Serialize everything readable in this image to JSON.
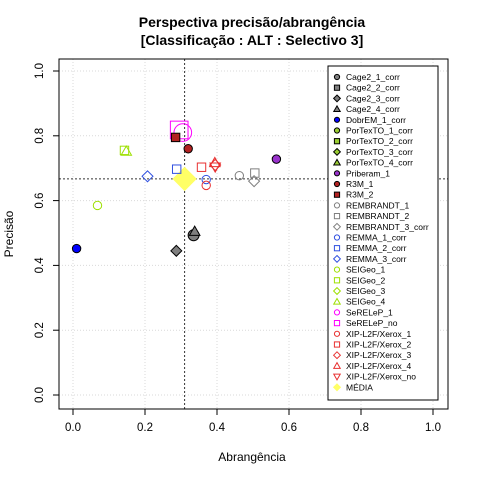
{
  "chart_data": {
    "type": "scatter",
    "title": "Perspectiva precisão/abrangência",
    "subtitle": "[Classificação : ALT : Selectivo 3]",
    "xlabel": "Abrangência",
    "ylabel": "Precisão",
    "xlim": [
      0,
      1
    ],
    "ylim": [
      0,
      1
    ],
    "xticks": [
      "0.0",
      "0.2",
      "0.4",
      "0.6",
      "0.8",
      "1.0"
    ],
    "yticks": [
      "0.0",
      "0.2",
      "0.4",
      "0.6",
      "0.8",
      "1.0"
    ],
    "grid": true,
    "legend_position": "right",
    "reference_lines": {
      "x": 0.31,
      "y": 0.667
    },
    "series": [
      {
        "name": "Cage2_1_corr",
        "shape": "circle",
        "filled": true,
        "color": "#7f7f7f",
        "size": 1.3,
        "x": 0.335,
        "y": 0.493
      },
      {
        "name": "Cage2_2_corr",
        "shape": "square",
        "filled": true,
        "color": "#7f7f7f",
        "size": 1.0,
        "x": null,
        "y": null
      },
      {
        "name": "Cage2_3_corr",
        "shape": "diamond",
        "filled": true,
        "color": "#7f7f7f",
        "size": 1.0,
        "x": 0.287,
        "y": 0.445
      },
      {
        "name": "Cage2_4_corr",
        "shape": "triangle",
        "filled": true,
        "color": "#7f7f7f",
        "size": 1.0,
        "x": 0.338,
        "y": 0.505
      },
      {
        "name": "DobrEM_1_corr",
        "shape": "circle",
        "filled": true,
        "color": "#0000ff",
        "size": 1.0,
        "x": 0.01,
        "y": 0.452
      },
      {
        "name": "PorTexTO_1_corr",
        "shape": "circle",
        "filled": true,
        "color": "#9acd32",
        "size": 1.0,
        "x": null,
        "y": null
      },
      {
        "name": "PorTexTO_2_corr",
        "shape": "square",
        "filled": true,
        "color": "#9acd32",
        "size": 1.0,
        "x": null,
        "y": null
      },
      {
        "name": "PorTexTO_3_corr",
        "shape": "diamond",
        "filled": true,
        "color": "#9acd32",
        "size": 1.0,
        "x": null,
        "y": null
      },
      {
        "name": "PorTexTO_4_corr",
        "shape": "triangle",
        "filled": true,
        "color": "#9acd32",
        "size": 1.0,
        "x": null,
        "y": null
      },
      {
        "name": "Priberam_1",
        "shape": "circle",
        "filled": true,
        "color": "#9932cc",
        "size": 1.0,
        "x": 0.565,
        "y": 0.728
      },
      {
        "name": "R3M_1",
        "shape": "circle",
        "filled": true,
        "color": "#b22222",
        "size": 1.0,
        "x": 0.32,
        "y": 0.76
      },
      {
        "name": "R3M_2",
        "shape": "square",
        "filled": true,
        "color": "#b22222",
        "size": 1.0,
        "x": 0.285,
        "y": 0.795
      },
      {
        "name": "REMBRANDT_1",
        "shape": "circle",
        "filled": false,
        "color": "#7f7f7f",
        "size": 1.0,
        "x": 0.462,
        "y": 0.677
      },
      {
        "name": "REMBRANDT_2",
        "shape": "square",
        "filled": false,
        "color": "#7f7f7f",
        "size": 1.0,
        "x": 0.505,
        "y": 0.685
      },
      {
        "name": "REMBRANDT_3_corr",
        "shape": "diamond",
        "filled": false,
        "color": "#7f7f7f",
        "size": 1.0,
        "x": 0.503,
        "y": 0.66
      },
      {
        "name": "REMMA_1_corr",
        "shape": "circle",
        "filled": false,
        "color": "#3050e0",
        "size": 1.0,
        "x": 0.37,
        "y": 0.665
      },
      {
        "name": "REMMA_2_corr",
        "shape": "square",
        "filled": false,
        "color": "#3050e0",
        "size": 1.0,
        "x": 0.288,
        "y": 0.697
      },
      {
        "name": "REMMA_3_corr",
        "shape": "diamond",
        "filled": false,
        "color": "#3050e0",
        "size": 1.0,
        "x": 0.207,
        "y": 0.675
      },
      {
        "name": "SEIGeo_1",
        "shape": "circle",
        "filled": false,
        "color": "#9de000",
        "size": 1.0,
        "x": 0.068,
        "y": 0.585
      },
      {
        "name": "SEIGeo_2",
        "shape": "square",
        "filled": false,
        "color": "#9de000",
        "size": 1.0,
        "x": 0.143,
        "y": 0.755
      },
      {
        "name": "SEIGeo_3",
        "shape": "diamond",
        "filled": false,
        "color": "#9de000",
        "size": 1.0,
        "x": null,
        "y": null
      },
      {
        "name": "SEIGeo_4",
        "shape": "triangle",
        "filled": false,
        "color": "#9de000",
        "size": 1.0,
        "x": 0.148,
        "y": 0.752
      },
      {
        "name": "SeRELeP_1",
        "shape": "circle",
        "filled": false,
        "color": "#ff00ff",
        "size": 2.1,
        "x": 0.305,
        "y": 0.81
      },
      {
        "name": "SeRELeP_no",
        "shape": "square",
        "filled": false,
        "color": "#ff00ff",
        "size": 2.1,
        "x": 0.295,
        "y": 0.818
      },
      {
        "name": "XIP-L2F/Xerox_1",
        "shape": "circle",
        "filled": false,
        "color": "#e83030",
        "size": 1.0,
        "x": 0.37,
        "y": 0.647
      },
      {
        "name": "XIP-L2F/Xerox_2",
        "shape": "square",
        "filled": false,
        "color": "#e83030",
        "size": 1.0,
        "x": 0.357,
        "y": 0.703
      },
      {
        "name": "XIP-L2F/Xerox_3",
        "shape": "diamond",
        "filled": false,
        "color": "#e83030",
        "size": 1.0,
        "x": 0.395,
        "y": 0.71
      },
      {
        "name": "XIP-L2F/Xerox_4",
        "shape": "triangle",
        "filled": false,
        "color": "#e83030",
        "size": 1.0,
        "x": 0.394,
        "y": 0.717
      },
      {
        "name": "XIP-L2F/Xerox_no",
        "shape": "triangle-down",
        "filled": false,
        "color": "#e83030",
        "size": 1.0,
        "x": 0.395,
        "y": 0.704
      },
      {
        "name": "MÉDIA",
        "shape": "diamond",
        "filled": true,
        "color": "#ffff66",
        "size": 2.1,
        "x": 0.31,
        "y": 0.667
      }
    ]
  }
}
